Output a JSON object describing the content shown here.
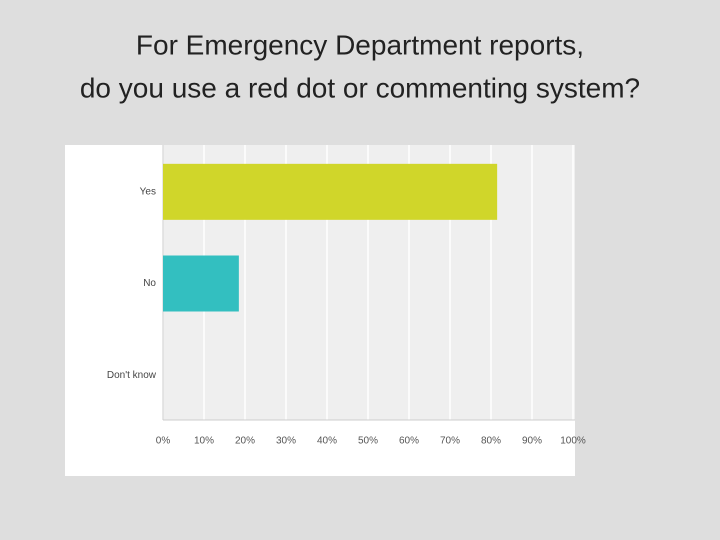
{
  "chart_data": {
    "type": "hbar",
    "title": [
      "For Emergency Department reports,",
      "do you use a red dot or commenting system?"
    ],
    "categories": [
      "Yes",
      "No",
      "Don't know"
    ],
    "values": [
      81.5,
      18.5,
      0
    ],
    "colors": [
      "#d0d62a",
      "#33bfc0",
      "#9b9b9b"
    ],
    "xlim": [
      0,
      100
    ],
    "xticks": [
      {
        "value": 0,
        "label": "0%"
      },
      {
        "value": 10,
        "label": "10%"
      },
      {
        "value": 20,
        "label": "20%"
      },
      {
        "value": 30,
        "label": "30%"
      },
      {
        "value": 40,
        "label": "40%"
      },
      {
        "value": 50,
        "label": "50%"
      },
      {
        "value": 60,
        "label": "60%"
      },
      {
        "value": 70,
        "label": "70%"
      },
      {
        "value": 80,
        "label": "80%"
      },
      {
        "value": 90,
        "label": "90%"
      },
      {
        "value": 100,
        "label": "100%"
      }
    ],
    "grid": true
  }
}
